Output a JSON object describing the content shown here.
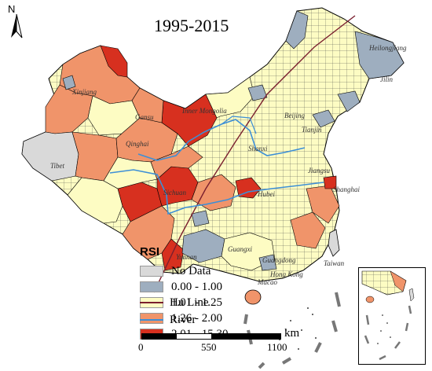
{
  "title": "1995-2015",
  "north_label": "N",
  "legend": {
    "title": "RSI",
    "items": [
      {
        "label": "No Data",
        "color": "#d9d9d9"
      },
      {
        "label": "0.00 - 1.00",
        "color": "#9eaebf"
      },
      {
        "label": "1.01 - 1.25",
        "color": "#fdfcc3"
      },
      {
        "label": "1.26 - 2.00",
        "color": "#f0946a"
      },
      {
        "label": "2.01 - 15.30",
        "color": "#d7301f"
      }
    ],
    "lines": [
      {
        "label": "Hu Line",
        "color": "#7a1f2e"
      },
      {
        "label": "River",
        "color": "#3d8fd6"
      }
    ]
  },
  "scale": {
    "unit": "km",
    "ticks": [
      "0",
      "550",
      "1100"
    ]
  },
  "places": [
    "Heilongjiang",
    "Jilin",
    "Inner Mongolia",
    "Xinjiang",
    "Gansu",
    "Qinghai",
    "Tibet",
    "Sichuan",
    "Yunnan",
    "Guangxi",
    "Guangdong",
    "Hong Kong",
    "Macao",
    "Taiwan",
    "Shanghai",
    "Jiangsu",
    "Hubei",
    "Beijing",
    "Tianjin",
    "Shanxi"
  ]
}
